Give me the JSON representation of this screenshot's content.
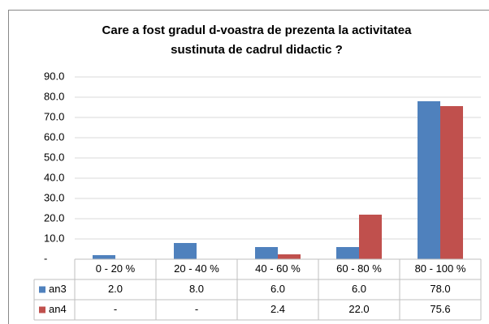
{
  "chart_data": {
    "type": "bar",
    "title": "Care a fost gradul d-voastra de prezenta la activitatea sustinuta de cadrul didactic ?",
    "categories": [
      "0 - 20 %",
      "20 - 40 %",
      "40 - 60 %",
      "60 - 80 %",
      "80 - 100 %"
    ],
    "series": [
      {
        "name": "an3",
        "color": "#4f81bd",
        "values": [
          2.0,
          8.0,
          6.0,
          6.0,
          78.0
        ],
        "value_labels": [
          "2.0",
          "8.0",
          "6.0",
          "6.0",
          "78.0"
        ]
      },
      {
        "name": "an4",
        "color": "#c0504d",
        "values": [
          0,
          0,
          2.4,
          22.0,
          75.6
        ],
        "value_labels": [
          "-",
          "-",
          "2.4",
          "22.0",
          "75.6"
        ]
      }
    ],
    "ylim": [
      0,
      90
    ],
    "yticks": [
      {
        "value": 0,
        "label": "-"
      },
      {
        "value": 10,
        "label": "10.0"
      },
      {
        "value": 20,
        "label": "20.0"
      },
      {
        "value": 30,
        "label": "30.0"
      },
      {
        "value": 40,
        "label": "40.0"
      },
      {
        "value": 50,
        "label": "50.0"
      },
      {
        "value": 60,
        "label": "60.0"
      },
      {
        "value": 70,
        "label": "70.0"
      },
      {
        "value": 80,
        "label": "80.0"
      },
      {
        "value": 90,
        "label": "90.0"
      }
    ],
    "grid": true,
    "data_table": true
  }
}
